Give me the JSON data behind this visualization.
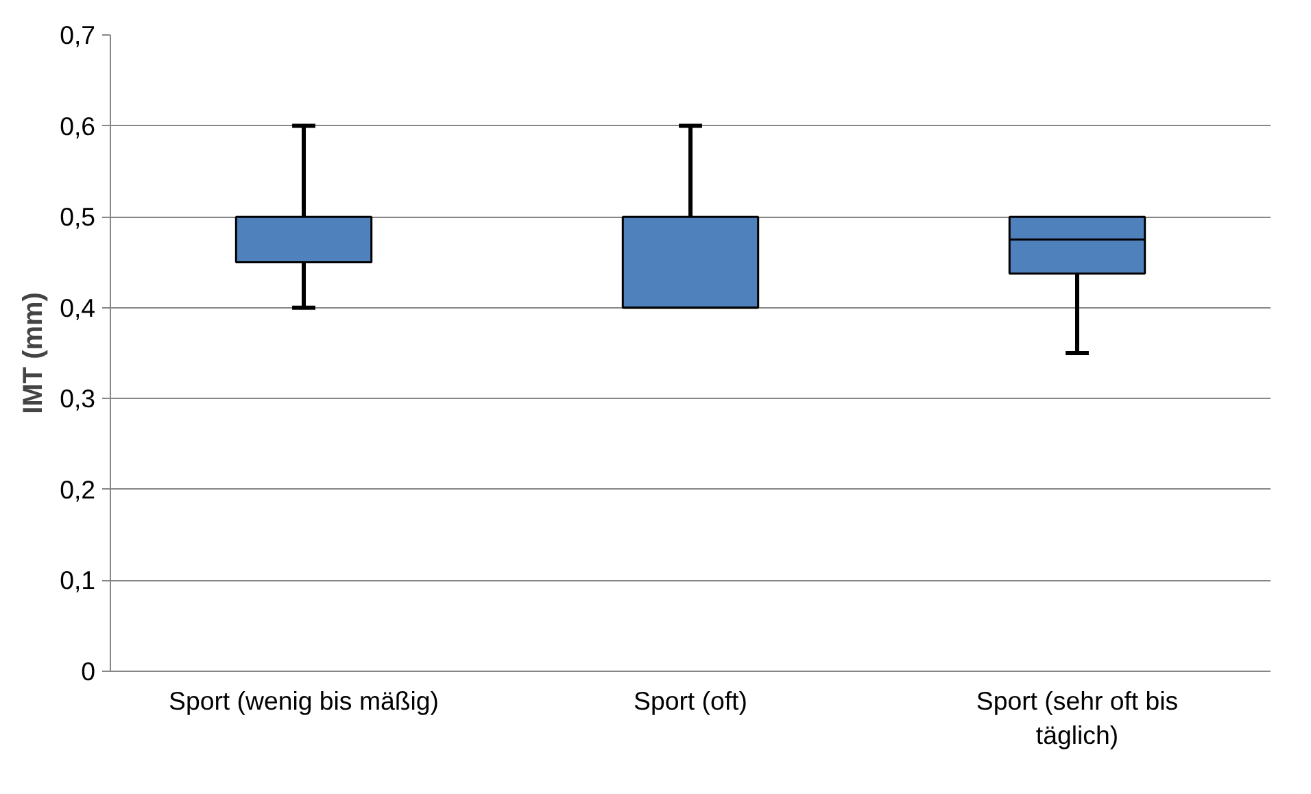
{
  "chart_data": {
    "type": "box",
    "ylabel": "IMT (mm)",
    "categories": [
      "Sport (wenig bis mäßig)",
      "Sport (oft)",
      "Sport (sehr oft bis täglich)"
    ],
    "color": "#4f81bd",
    "boxes": [
      {
        "low": 0.4,
        "q1": 0.45,
        "median": 0.45,
        "q3": 0.5,
        "high": 0.6
      },
      {
        "low": 0.4,
        "q1": 0.4,
        "median": 0.4,
        "q3": 0.5,
        "high": 0.6
      },
      {
        "low": 0.35,
        "q1": 0.4375,
        "median": 0.475,
        "q3": 0.5,
        "high": 0.5
      }
    ],
    "ylim": [
      0,
      0.7
    ],
    "yticks": [
      0,
      {
        "value": 0.1,
        "label": "0,1"
      },
      {
        "value": 0.2,
        "label": "0,2"
      },
      {
        "value": 0.3,
        "label": "0,3"
      },
      {
        "value": 0.4,
        "label": "0,4"
      },
      {
        "value": 0.5,
        "label": "0,5"
      },
      {
        "value": 0.6,
        "label": "0,6"
      },
      {
        "value": 0.7,
        "label": "0,7"
      }
    ],
    "grid": "y"
  }
}
